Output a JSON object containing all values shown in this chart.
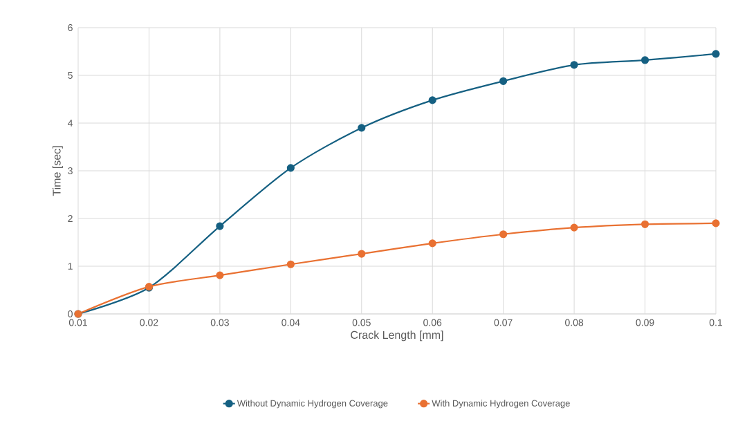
{
  "chart_data": {
    "type": "line",
    "xlabel": "Crack Length [mm]",
    "ylabel": "Time [sec]",
    "x": [
      0.01,
      0.02,
      0.03,
      0.04,
      0.05,
      0.06,
      0.07,
      0.08,
      0.09,
      0.1
    ],
    "series": [
      {
        "name": "Without Dynamic Hydrogen Coverage",
        "color": "#156082",
        "values": [
          0,
          0.55,
          1.84,
          3.06,
          3.9,
          4.48,
          4.88,
          5.22,
          5.32,
          5.45
        ]
      },
      {
        "name": "With Dynamic Hydrogen Coverage",
        "color": "#e97132",
        "values": [
          0,
          0.57,
          0.81,
          1.04,
          1.26,
          1.48,
          1.67,
          1.81,
          1.88,
          1.9
        ]
      }
    ],
    "xlim": [
      0.01,
      0.1
    ],
    "ylim": [
      0,
      6
    ],
    "xticks": [
      0.01,
      0.02,
      0.03,
      0.04,
      0.05,
      0.06,
      0.07,
      0.08,
      0.09,
      0.1
    ],
    "yticks": [
      0,
      1,
      2,
      3,
      4,
      5,
      6
    ],
    "grid": true,
    "legend": "bottom",
    "marker": "circle",
    "line_style": "solid"
  }
}
